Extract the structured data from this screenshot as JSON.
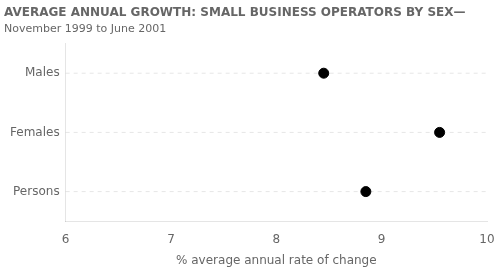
{
  "chart_data": {
    "type": "dot",
    "title": "AVERAGE ANNUAL GROWTH: SMALL BUSINESS OPERATORS BY SEX—",
    "subtitle": "November 1999 to June 2001",
    "categories": [
      "Males",
      "Females",
      "Persons"
    ],
    "values": [
      8.45,
      9.55,
      8.85
    ],
    "xlabel": "% average annual rate of change",
    "xlim": [
      6,
      10
    ],
    "xticks": [
      6,
      7,
      8,
      9,
      10
    ],
    "color": "#000000",
    "marker": "circle",
    "grid": "y"
  }
}
